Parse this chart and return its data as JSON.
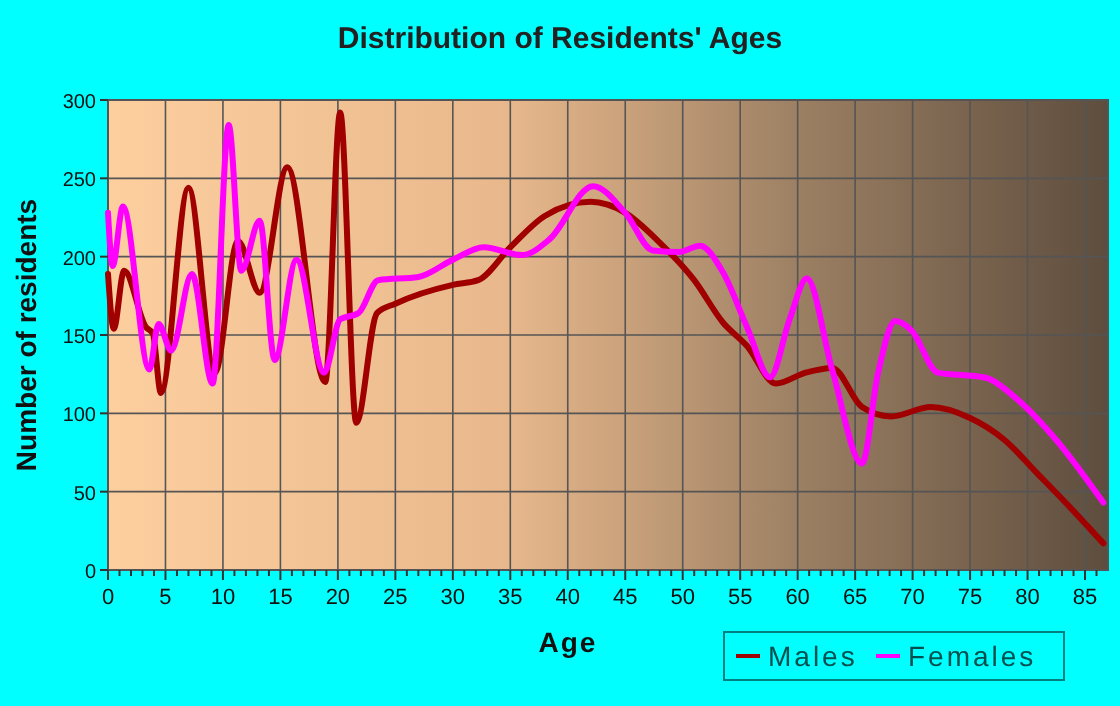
{
  "chart_data": {
    "type": "line",
    "title": "Distribution of Residents' Ages",
    "xlabel": "Age",
    "ylabel": "Number of residents",
    "xlim": [
      0,
      87
    ],
    "ylim": [
      0,
      300
    ],
    "xticks": [
      0,
      {
        "value": 1,
        "label": null
      },
      {
        "value": 2,
        "label": null
      },
      {
        "value": 3,
        "label": null
      },
      {
        "value": 4,
        "label": null
      },
      5,
      {
        "value": 6,
        "label": null
      },
      {
        "value": 7,
        "label": null
      },
      {
        "value": 8,
        "label": null
      },
      {
        "value": 9,
        "label": null
      },
      10,
      {
        "value": 11,
        "label": null
      },
      {
        "value": 12,
        "label": null
      },
      {
        "value": 13,
        "label": null
      },
      {
        "value": 14,
        "label": null
      },
      15,
      {
        "value": 16,
        "label": null
      },
      {
        "value": 17,
        "label": null
      },
      {
        "value": 18,
        "label": null
      },
      {
        "value": 19,
        "label": null
      },
      20,
      {
        "value": 21,
        "label": null
      },
      {
        "value": 22,
        "label": null
      },
      {
        "value": 23,
        "label": null
      },
      {
        "value": 24,
        "label": null
      },
      25,
      {
        "value": 26,
        "label": null
      },
      {
        "value": 27,
        "label": null
      },
      {
        "value": 28,
        "label": null
      },
      {
        "value": 29,
        "label": null
      },
      30,
      {
        "value": 31,
        "label": null
      },
      {
        "value": 32,
        "label": null
      },
      {
        "value": 33,
        "label": null
      },
      {
        "value": 34,
        "label": null
      },
      35,
      {
        "value": 36,
        "label": null
      },
      {
        "value": 37,
        "label": null
      },
      {
        "value": 38,
        "label": null
      },
      {
        "value": 39,
        "label": null
      },
      40,
      {
        "value": 41,
        "label": null
      },
      {
        "value": 42,
        "label": null
      },
      {
        "value": 43,
        "label": null
      },
      {
        "value": 44,
        "label": null
      },
      45,
      {
        "value": 46,
        "label": null
      },
      {
        "value": 47,
        "label": null
      },
      {
        "value": 48,
        "label": null
      },
      {
        "value": 49,
        "label": null
      },
      50,
      {
        "value": 51,
        "label": null
      },
      {
        "value": 52,
        "label": null
      },
      {
        "value": 53,
        "label": null
      },
      {
        "value": 54,
        "label": null
      },
      55,
      {
        "value": 56,
        "label": null
      },
      {
        "value": 57,
        "label": null
      },
      {
        "value": 58,
        "label": null
      },
      {
        "value": 59,
        "label": null
      },
      60,
      {
        "value": 61,
        "label": null
      },
      {
        "value": 62,
        "label": null
      },
      {
        "value": 63,
        "label": null
      },
      {
        "value": 64,
        "label": null
      },
      65,
      {
        "value": 66,
        "label": null
      },
      {
        "value": 67,
        "label": null
      },
      {
        "value": 68,
        "label": null
      },
      {
        "value": 69,
        "label": null
      },
      70,
      {
        "value": 71,
        "label": null
      },
      {
        "value": 72,
        "label": null
      },
      {
        "value": 73,
        "label": null
      },
      {
        "value": 74,
        "label": null
      },
      75,
      {
        "value": 76,
        "label": null
      },
      {
        "value": 77,
        "label": null
      },
      {
        "value": 78,
        "label": null
      },
      {
        "value": 79,
        "label": null
      },
      80,
      {
        "value": 81,
        "label": null
      },
      {
        "value": 82,
        "label": null
      },
      {
        "value": 83,
        "label": null
      },
      {
        "value": 84,
        "label": null
      },
      85,
      {
        "value": 86,
        "label": null
      }
    ],
    "yticks": [
      0,
      50,
      100,
      150,
      200,
      250,
      300
    ],
    "grid": true,
    "legend": "bottom right",
    "marker": "none",
    "line_style": "solid",
    "series": [
      {
        "name": "Males",
        "color": "#a00000",
        "x": [
          0,
          0.5,
          1.4,
          3.3,
          3.9,
          4.6,
          7,
          9.3,
          11.3,
          13.2,
          15.6,
          18.9,
          20.2,
          21.6,
          23.4,
          25,
          30,
          32.2,
          35,
          38,
          42,
          45,
          48,
          51,
          53.5,
          55.6,
          58.1,
          60.7,
          63,
          65.6,
          68.1,
          71.6,
          75,
          78,
          80.8,
          83.7,
          86.6
        ],
        "values": [
          189,
          154,
          191,
          155,
          151,
          113,
          244,
          126,
          210,
          177,
          257,
          120,
          292,
          94,
          164,
          170,
          182,
          185,
          206,
          226,
          235,
          228,
          209,
          185,
          158,
          143,
          119,
          126,
          129,
          104,
          98,
          104,
          97,
          83,
          62,
          40,
          17
        ]
      },
      {
        "name": "Females",
        "color": "#ff00ff",
        "x": [
          0,
          0.4,
          1.3,
          3.6,
          4.4,
          5.5,
          7.3,
          9.1,
          10.5,
          11.6,
          13.2,
          14.5,
          16.4,
          18.8,
          20.2,
          21.8,
          23.5,
          27,
          30,
          32.7,
          36,
          38.4,
          42.2,
          45,
          47.4,
          49.7,
          51.5,
          53.5,
          55.6,
          57.6,
          59.3,
          60.8,
          63,
          65.6,
          67,
          68.5,
          69.9,
          72.2,
          76.2,
          79.1,
          82.5,
          86.6
        ],
        "values": [
          228,
          194,
          232,
          128,
          157,
          140,
          189,
          119,
          284,
          191,
          223,
          134,
          198,
          126,
          160,
          164,
          185,
          187,
          198,
          206,
          201,
          211,
          245,
          228,
          204,
          203,
          207,
          190,
          155,
          123,
          160,
          186,
          128,
          68,
          126,
          159,
          153,
          126,
          123,
          109,
          83,
          43
        ]
      }
    ]
  }
}
